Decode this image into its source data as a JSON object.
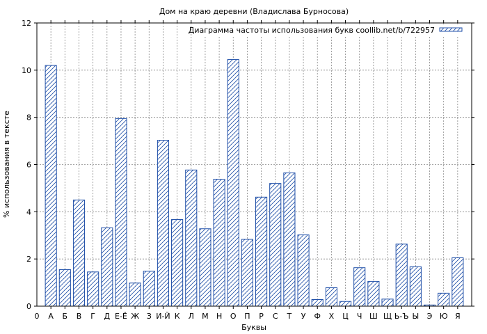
{
  "chart_data": {
    "type": "bar",
    "title": "Дом на краю деревни (Владислава Бурносова)",
    "xlabel": "Буквы",
    "ylabel": "% использования в тексте",
    "ylim": [
      0,
      12
    ],
    "yticks": [
      "0",
      "2",
      "4",
      "6",
      "8",
      "10",
      "12"
    ],
    "xtick_start_label": "0",
    "grid": true,
    "legend_position": "top-right",
    "colors": {
      "bar_stroke": "#1f4fa8",
      "hatch": "#1f4fa8",
      "grid": "#888888",
      "axis": "#000000"
    },
    "categories": [
      "А",
      "Б",
      "В",
      "Г",
      "Д",
      "Е-Ё",
      "Ж",
      "З",
      "И-Й",
      "К",
      "Л",
      "М",
      "Н",
      "О",
      "П",
      "Р",
      "С",
      "Т",
      "У",
      "Ф",
      "Х",
      "Ц",
      "Ч",
      "Ш",
      "Щ",
      "Ь-Ъ",
      "Ы",
      "Э",
      "Ю",
      "Я"
    ],
    "series": [
      {
        "name": "Диаграмма частоты использования букв coollib.net/b/722957",
        "values": [
          10.2,
          1.55,
          4.5,
          1.45,
          3.32,
          7.95,
          0.98,
          1.48,
          7.03,
          3.67,
          5.77,
          3.28,
          5.38,
          10.45,
          2.83,
          4.62,
          5.2,
          5.65,
          3.02,
          0.28,
          0.78,
          0.2,
          1.63,
          1.05,
          0.3,
          2.63,
          1.67,
          0.05,
          0.55,
          2.05
        ]
      }
    ]
  }
}
